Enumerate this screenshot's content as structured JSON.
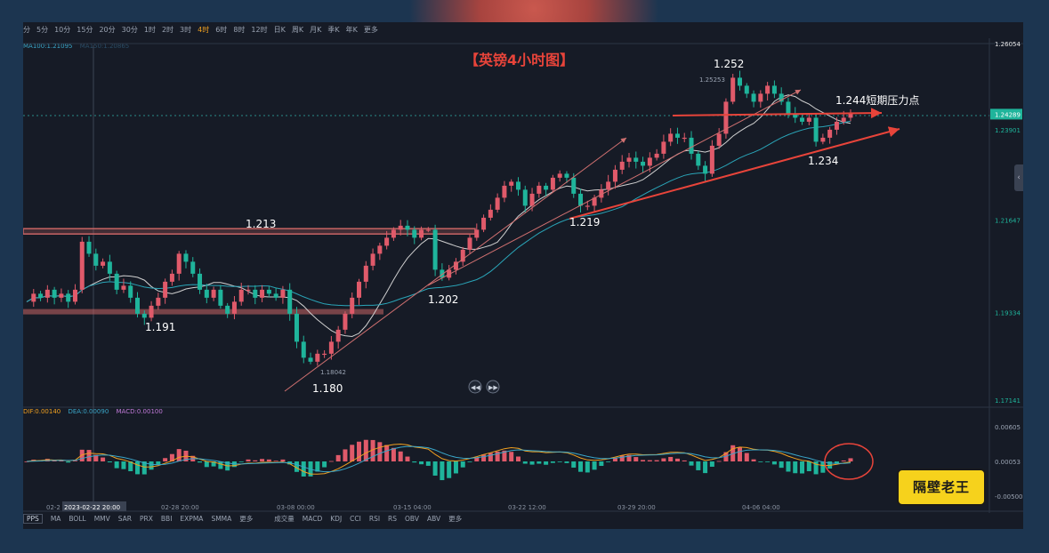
{
  "toolbar": {
    "items": [
      "分",
      "5分",
      "10分",
      "15分",
      "20分",
      "30分",
      "1时",
      "2时",
      "3时",
      "4时",
      "6时",
      "8时",
      "12时",
      "日K",
      "周K",
      "月K",
      "季K",
      "年K",
      "更多"
    ],
    "active_index": 9
  },
  "indicators": {
    "ma100": "MA100:1.21095",
    "ma_faint": "MA150:1.20865",
    "dif": "DIF:0.00140",
    "dea": "DEA:0.00090",
    "macd": "MACD:0.00100"
  },
  "bottom_bar": {
    "pps": "PPS",
    "main_indicators": [
      "MA",
      "BOLL",
      "MMV",
      "SAR",
      "PRX",
      "BBI",
      "EXPMA",
      "SMMA",
      "更多"
    ],
    "sub_indicators": [
      "成交量",
      "MACD",
      "KDJ",
      "CCI",
      "RSI",
      "RS",
      "OBV",
      "ABV",
      "更多"
    ]
  },
  "colors": {
    "up": "#e05a6a",
    "down": "#1fb49b",
    "ma_slow": "#2aa5b8",
    "ma_fast": "#d0d0d0",
    "annotation": "#e8443a",
    "zone": "#c86464"
  },
  "chart_data": {
    "type": "candlestick",
    "title": "【英镑4小时图】",
    "price_axis": {
      "ticks": [
        "1.26054",
        "1.24289",
        "1.23901",
        "1.21647",
        "1.19334",
        "1.17141"
      ],
      "tick_values": [
        1.26054,
        1.24289,
        1.23901,
        1.21647,
        1.19334,
        1.17141
      ],
      "current_price": "1.24289"
    },
    "time_axis": {
      "labels": [
        "02-2",
        "2023-02-22 20:00",
        "02-28 20:00",
        "03-08 00:00",
        "03-15 04:00",
        "03-22 12:00",
        "03-29 20:00",
        "04-06 04:00"
      ]
    },
    "macd_axis": {
      "ticks": [
        "0.00605",
        "0.00053",
        "-0.00500"
      ]
    },
    "annotations": {
      "high_label": "1.252",
      "high_exact": "1.25253",
      "resistance_label": "1.244短期压力点",
      "support_1234": "1.234",
      "level_1213": "1.213",
      "level_1219": "1.219",
      "level_1202": "1.202",
      "level_1191": "1.191",
      "low_label": "1.180",
      "low_exact": "1.18042"
    },
    "price_path": [
      1.196,
      1.198,
      1.197,
      1.199,
      1.197,
      1.198,
      1.196,
      1.199,
      1.211,
      1.208,
      1.205,
      1.206,
      1.203,
      1.199,
      1.2,
      1.197,
      1.193,
      1.192,
      1.195,
      1.197,
      1.201,
      1.203,
      1.208,
      1.206,
      1.203,
      1.199,
      1.197,
      1.199,
      1.195,
      1.193,
      1.196,
      1.199,
      1.199,
      1.197,
      1.199,
      1.198,
      1.197,
      1.199,
      1.193,
      1.186,
      1.182,
      1.181,
      1.183,
      1.183,
      1.186,
      1.189,
      1.193,
      1.197,
      1.201,
      1.205,
      1.208,
      1.21,
      1.212,
      1.214,
      1.215,
      1.214,
      1.212,
      1.214,
      1.214,
      1.204,
      1.202,
      1.204,
      1.206,
      1.209,
      1.212,
      1.214,
      1.217,
      1.219,
      1.222,
      1.225,
      1.226,
      1.224,
      1.22,
      1.223,
      1.225,
      1.224,
      1.227,
      1.228,
      1.227,
      1.223,
      1.22,
      1.22,
      1.222,
      1.224,
      1.226,
      1.229,
      1.231,
      1.232,
      1.231,
      1.23,
      1.232,
      1.233,
      1.236,
      1.238,
      1.237,
      1.237,
      1.233,
      1.23,
      1.228,
      1.235,
      1.238,
      1.246,
      1.252,
      1.25,
      1.248,
      1.246,
      1.248,
      1.25,
      1.248,
      1.246,
      1.243,
      1.242,
      1.241,
      1.242,
      1.236,
      1.237,
      1.239,
      1.241,
      1.242,
      1.243
    ]
  }
}
